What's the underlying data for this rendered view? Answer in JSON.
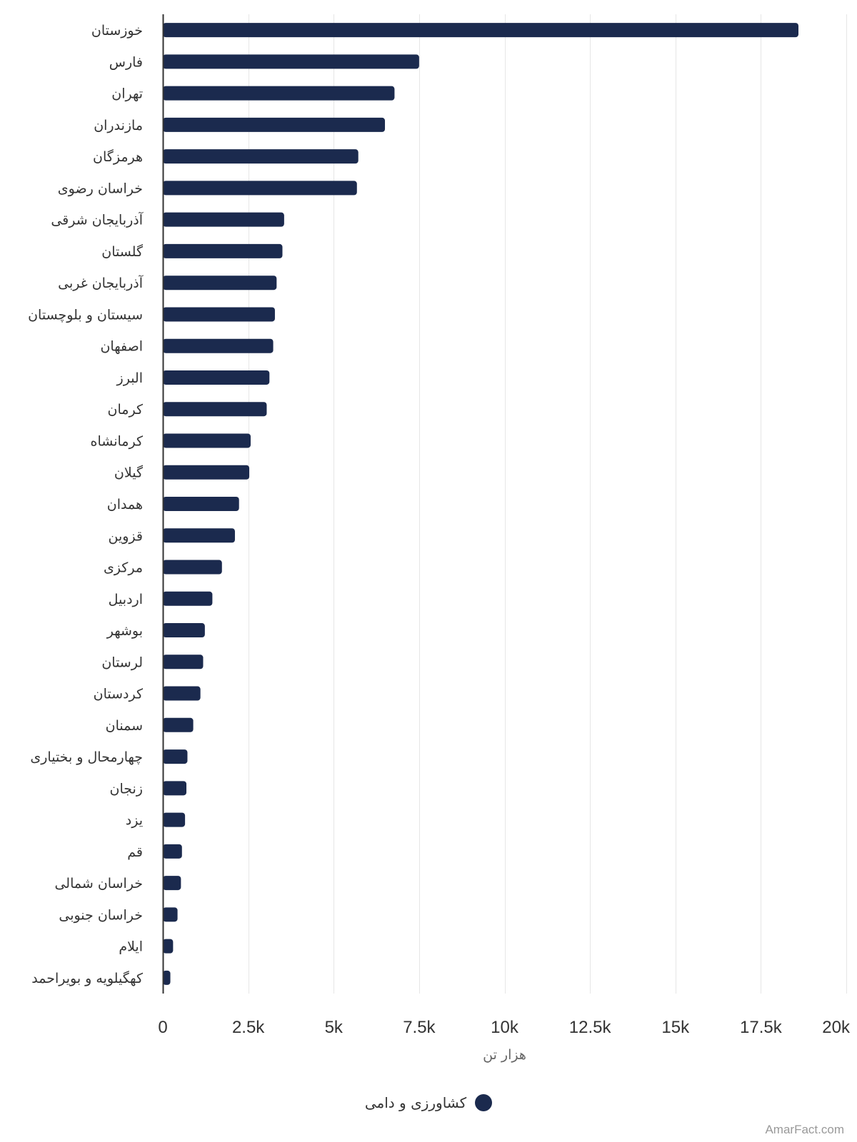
{
  "chart_data": {
    "type": "bar",
    "orientation": "horizontal",
    "categories": [
      "خوزستان",
      "فارس",
      "تهران",
      "مازندران",
      "هرمزگان",
      "خراسان رضوی",
      "آذربایجان شرقی",
      "گلستان",
      "آذربایجان غربی",
      "سیستان و بلوچستان",
      "اصفهان",
      "البرز",
      "کرمان",
      "کرمانشاه",
      "گیلان",
      "همدان",
      "قزوین",
      "مرکزی",
      "اردبیل",
      "بوشهر",
      "لرستان",
      "کردستان",
      "سمنان",
      "چهارمحال و بختیاری",
      "زنجان",
      "یزد",
      "قم",
      "خراسان شمالی",
      "خراسان جنوبی",
      "ایلام",
      "کهگیلویه و بویراحمد"
    ],
    "series": [
      {
        "name": "کشاورزی و دامی",
        "color": "#1b2a4e",
        "values": [
          18600,
          7500,
          6780,
          6500,
          5720,
          5680,
          3550,
          3500,
          3330,
          3280,
          3230,
          3120,
          3040,
          2570,
          2530,
          2230,
          2110,
          1730,
          1450,
          1230,
          1180,
          1100,
          890,
          720,
          690,
          650,
          560,
          530,
          430,
          300,
          220
        ]
      }
    ],
    "xlim": [
      0,
      20000
    ],
    "xticks": [
      0,
      2500,
      5000,
      7500,
      10000,
      12500,
      15000,
      17500,
      20000
    ],
    "xtick_labels": [
      "0",
      "2.5k",
      "5k",
      "7.5k",
      "10k",
      "12.5k",
      "15k",
      "17.5k",
      "20k"
    ],
    "xlabel": "هزار تن",
    "ylabel": "",
    "title": "",
    "grid": "vertical",
    "legend": "bottom-center"
  },
  "legend": {
    "label": "کشاورزی و دامی",
    "color": "#1b2a4e"
  },
  "credit": "AmarFact.com"
}
